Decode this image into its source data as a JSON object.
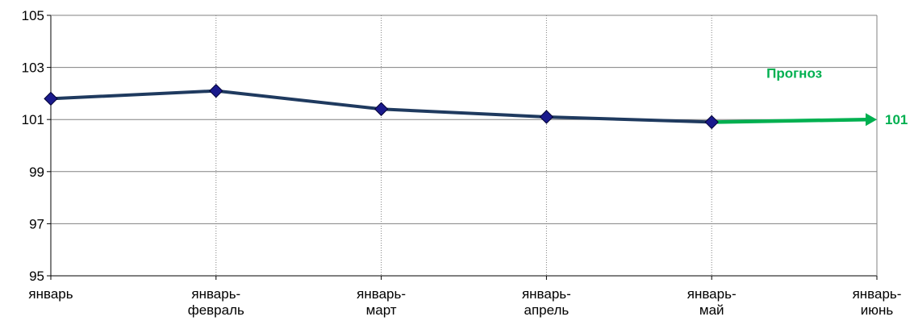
{
  "chart_data": {
    "type": "line",
    "categories": [
      [
        "январь"
      ],
      [
        "январь-",
        "февраль"
      ],
      [
        "январь-",
        "март"
      ],
      [
        "январь-",
        "апрель"
      ],
      [
        "январь-",
        "май"
      ],
      [
        "январь-",
        "июнь"
      ]
    ],
    "series": [
      {
        "values": [
          101.8,
          102.1,
          101.4,
          101.1,
          100.9,
          null
        ],
        "color": "#1f3a5f",
        "marker_color": "#1a1a8c",
        "marker": "diamond"
      }
    ],
    "forecast": {
      "label": "Прогноз",
      "from_index": 4,
      "to_index": 5,
      "from_value": 100.9,
      "to_value": 101.0,
      "value_label": "101",
      "color": "#00b050"
    },
    "ylim": [
      95,
      105
    ],
    "yticks": [
      "95",
      "97",
      "99",
      "101",
      "103",
      "105"
    ],
    "ytick_values": [
      95,
      97,
      99,
      101,
      103,
      105
    ],
    "grid": {
      "horizontal": true,
      "vertical": true,
      "vertical_style": "dotted"
    },
    "title": "",
    "xlabel": "",
    "ylabel": ""
  }
}
